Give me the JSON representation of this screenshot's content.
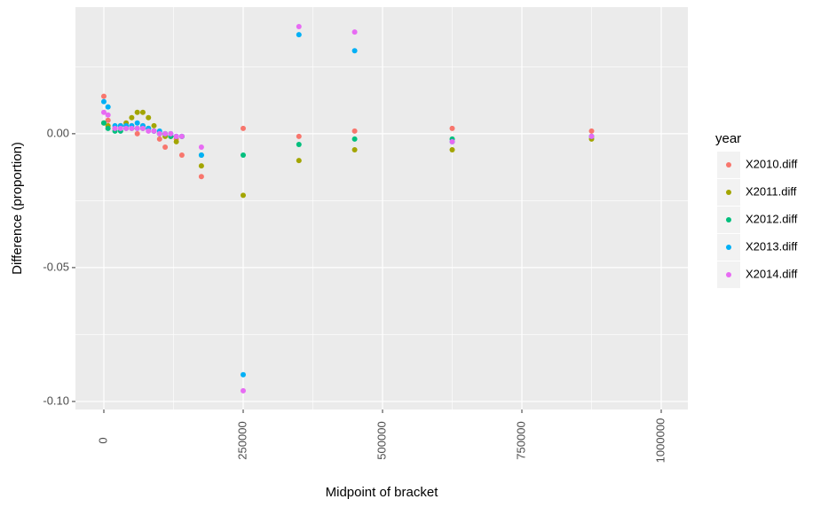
{
  "chart_data": {
    "type": "scatter",
    "x_label": "Midpoint of bracket",
    "y_label": "Difference (proportion)",
    "legend_title": "year",
    "legend_position": "right",
    "grid": true,
    "x": [
      0,
      7500,
      20000,
      30000,
      40000,
      50000,
      60000,
      70000,
      80000,
      90000,
      100000,
      110000,
      120000,
      130000,
      140000,
      175000,
      250000,
      350000,
      450000,
      625000,
      875000
    ],
    "series": [
      {
        "name": "X2010.diff",
        "color": "#F8766D",
        "values": [
          0.014,
          0.005,
          0.002,
          0.003,
          0.003,
          0.003,
          0.0,
          0.003,
          0.002,
          0.001,
          -0.002,
          -0.005,
          -0.001,
          -0.002,
          -0.008,
          -0.016,
          0.002,
          -0.001,
          0.001,
          0.002,
          0.001
        ]
      },
      {
        "name": "X2011.diff",
        "color": "#A3A500",
        "values": [
          0.004,
          0.003,
          0.002,
          0.003,
          0.004,
          0.006,
          0.008,
          0.008,
          0.006,
          0.003,
          0.0,
          -0.001,
          -0.001,
          -0.003,
          -0.001,
          -0.012,
          -0.023,
          -0.01,
          -0.006,
          -0.006,
          -0.002
        ]
      },
      {
        "name": "X2012.diff",
        "color": "#00BF7D",
        "values": [
          0.004,
          0.002,
          0.001,
          0.001,
          0.002,
          0.002,
          0.002,
          0.002,
          0.002,
          0.001,
          0.0,
          0.0,
          -0.001,
          -0.001,
          -0.001,
          -0.008,
          -0.008,
          -0.004,
          -0.002,
          -0.002,
          -0.001
        ]
      },
      {
        "name": "X2013.diff",
        "color": "#00B0F6",
        "values": [
          0.012,
          0.01,
          0.003,
          0.003,
          0.003,
          0.003,
          0.004,
          0.003,
          0.002,
          0.001,
          0.001,
          0.0,
          0.0,
          -0.001,
          -0.001,
          -0.008,
          -0.09,
          0.037,
          0.031,
          -0.003,
          -0.001
        ]
      },
      {
        "name": "X2014.diff",
        "color": "#E76BF3",
        "values": [
          0.008,
          0.007,
          0.002,
          0.002,
          0.002,
          0.002,
          0.002,
          0.002,
          0.001,
          0.001,
          0.0,
          0.0,
          0.0,
          -0.001,
          -0.001,
          -0.005,
          -0.096,
          0.04,
          0.038,
          -0.003,
          -0.001
        ]
      }
    ],
    "xlim": [
      -50955,
      1047770
    ],
    "xticks": [
      0,
      250000,
      500000,
      750000,
      1000000
    ],
    "ylim": [
      -0.103,
      0.0473
    ],
    "yticks": [
      {
        "value": -0.1,
        "label": "-0.10"
      },
      {
        "value": -0.05,
        "label": "-0.05"
      },
      {
        "value": 0,
        "label": "0.00"
      }
    ]
  }
}
